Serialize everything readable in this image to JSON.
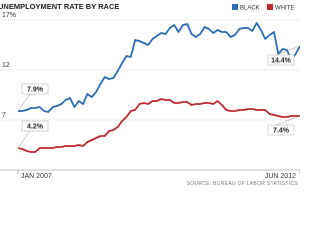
{
  "chart_data": {
    "type": "line",
    "title": "UNEMPLOYMENT RATE BY RACE",
    "source": "SOURCE: BUREAU OF LABOR STATISTICS",
    "categories": [
      "JAN 2007",
      null,
      null,
      null,
      null,
      null,
      null,
      null,
      null,
      null,
      null,
      null,
      null,
      null,
      null,
      null,
      null,
      null,
      null,
      null,
      null,
      null,
      null,
      null,
      null,
      null,
      null,
      null,
      null,
      null,
      null,
      null,
      null,
      null,
      null,
      null,
      null,
      null,
      null,
      null,
      null,
      null,
      null,
      null,
      null,
      null,
      null,
      null,
      null,
      null,
      null,
      null,
      null,
      null,
      null,
      null,
      null,
      null,
      null,
      null,
      null,
      null,
      null,
      null,
      null,
      "JUN 2012"
    ],
    "series": [
      {
        "name": "BLACK",
        "color": "#2c6db5",
        "values": [
          7.9,
          7.9,
          8.0,
          8.2,
          8.2,
          8.3,
          7.9,
          7.8,
          8.3,
          8.4,
          8.6,
          9.0,
          9.2,
          8.3,
          8.9,
          8.6,
          9.6,
          9.3,
          9.8,
          10.6,
          11.3,
          11.1,
          11.2,
          11.9,
          12.7,
          13.4,
          13.3,
          15.0,
          14.9,
          14.7,
          14.5,
          15.1,
          15.4,
          15.7,
          15.6,
          16.2,
          16.5,
          15.8,
          16.5,
          16.6,
          15.6,
          15.3,
          15.6,
          16.3,
          16.1,
          15.7,
          16.0,
          15.8,
          15.8,
          15.3,
          15.5,
          16.1,
          16.2,
          16.2,
          15.9,
          16.7,
          16.0,
          15.1,
          15.5,
          15.8,
          13.6,
          14.1,
          14.0,
          13.0,
          13.6,
          14.4
        ],
        "value_labels": [
          "7.9%",
          null,
          null,
          null,
          null,
          null,
          null,
          null,
          null,
          null,
          null,
          null,
          null,
          null,
          null,
          null,
          null,
          null,
          null,
          null,
          null,
          null,
          null,
          null,
          null,
          null,
          null,
          null,
          null,
          null,
          null,
          null,
          null,
          null,
          null,
          null,
          null,
          null,
          null,
          null,
          null,
          null,
          null,
          null,
          null,
          null,
          null,
          null,
          null,
          null,
          null,
          null,
          null,
          null,
          null,
          null,
          null,
          null,
          null,
          null,
          null,
          null,
          null,
          null,
          null,
          "14.4%"
        ]
      },
      {
        "name": "WHITE",
        "color": "#c0272d",
        "values": [
          4.2,
          4.1,
          3.9,
          3.8,
          3.8,
          4.2,
          4.2,
          4.2,
          4.2,
          4.3,
          4.3,
          4.4,
          4.4,
          4.4,
          4.5,
          4.4,
          4.8,
          5.0,
          5.2,
          5.4,
          5.4,
          5.9,
          6.0,
          6.3,
          6.9,
          7.3,
          7.9,
          8.0,
          8.6,
          8.7,
          8.6,
          8.9,
          8.9,
          9.1,
          9.0,
          9.0,
          8.7,
          8.7,
          8.8,
          8.8,
          8.5,
          8.6,
          8.6,
          8.7,
          8.7,
          8.6,
          8.9,
          8.5,
          8.0,
          7.9,
          7.9,
          8.0,
          8.0,
          8.1,
          8.1,
          8.0,
          8.0,
          8.0,
          7.6,
          7.5,
          7.4,
          7.3,
          7.3,
          7.4,
          7.4,
          7.4
        ],
        "value_labels": [
          "4.2%",
          null,
          null,
          null,
          null,
          null,
          null,
          null,
          null,
          null,
          null,
          null,
          null,
          null,
          null,
          null,
          null,
          null,
          null,
          null,
          null,
          null,
          null,
          null,
          null,
          null,
          null,
          null,
          null,
          null,
          null,
          null,
          null,
          null,
          null,
          null,
          null,
          null,
          null,
          null,
          null,
          null,
          null,
          null,
          null,
          null,
          null,
          null,
          null,
          null,
          null,
          null,
          null,
          null,
          null,
          null,
          null,
          null,
          null,
          null,
          null,
          null,
          null,
          null,
          null,
          "7.4%"
        ]
      }
    ],
    "ylim": [
      2,
      17
    ],
    "yticks": [
      {
        "value": 17,
        "label": "17%"
      },
      12,
      7
    ],
    "grid": true
  }
}
